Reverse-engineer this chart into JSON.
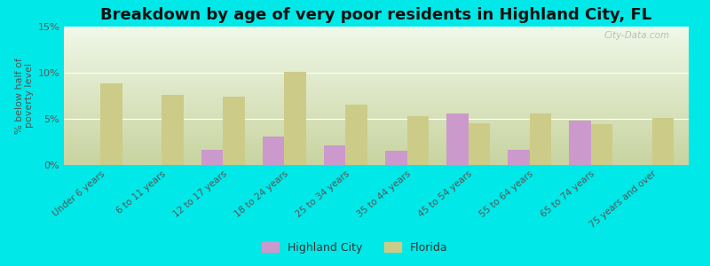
{
  "title": "Breakdown by age of very poor residents in Highland City, FL",
  "ylabel": "% below half of\npoverty level",
  "background_color": "#00e8e8",
  "plot_bg_top": "#c8d4a0",
  "plot_bg_bottom": "#f0f8e8",
  "categories": [
    "Under 6 years",
    "6 to 11 years",
    "12 to 17 years",
    "18 to 24 years",
    "25 to 34 years",
    "35 to 44 years",
    "45 to 54 years",
    "55 to 64 years",
    "65 to 74 years",
    "75 years and over"
  ],
  "highland_city": [
    0,
    0,
    1.6,
    3.1,
    2.1,
    1.5,
    5.6,
    1.6,
    4.8,
    0
  ],
  "florida": [
    8.8,
    7.6,
    7.4,
    10.1,
    6.5,
    5.3,
    4.5,
    5.6,
    4.4,
    5.1
  ],
  "highland_color": "#cc99cc",
  "florida_color": "#cccc88",
  "ylim": [
    0,
    15
  ],
  "yticks": [
    0,
    5,
    10,
    15
  ],
  "ytick_labels": [
    "0%",
    "5%",
    "10%",
    "15%"
  ],
  "bar_width": 0.35,
  "watermark": "City-Data.com",
  "legend_labels": [
    "Highland City",
    "Florida"
  ],
  "title_fontsize": 13,
  "label_fontsize": 8,
  "tick_fontsize": 8
}
